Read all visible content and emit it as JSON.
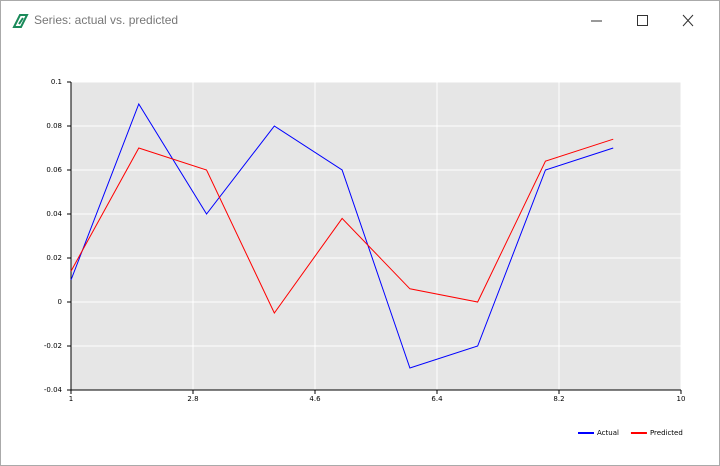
{
  "window_title": "Series: actual vs. predicted",
  "chart_data": {
    "type": "line",
    "x": [
      1,
      2,
      3,
      4,
      5,
      6,
      7,
      8,
      9
    ],
    "series": [
      {
        "name": "Actual",
        "color": "#0000ff",
        "values": [
          0.01,
          0.09,
          0.04,
          0.08,
          0.06,
          -0.03,
          -0.02,
          0.06,
          0.07
        ]
      },
      {
        "name": "Predicted",
        "color": "#ff0000",
        "values": [
          0.014,
          0.07,
          0.06,
          -0.005,
          0.038,
          0.006,
          0,
          0.064,
          0.074
        ]
      }
    ],
    "xlim": [
      1,
      10
    ],
    "xticks": [
      1,
      2.8,
      4.6,
      6.4,
      8.2,
      10
    ],
    "ylim": [
      -0.04,
      0.1
    ],
    "yticks": [
      -0.04,
      -0.02,
      0,
      0.02,
      0.04,
      0.06,
      0.08,
      0.1
    ],
    "grid": true,
    "legend": "bottom-right"
  }
}
